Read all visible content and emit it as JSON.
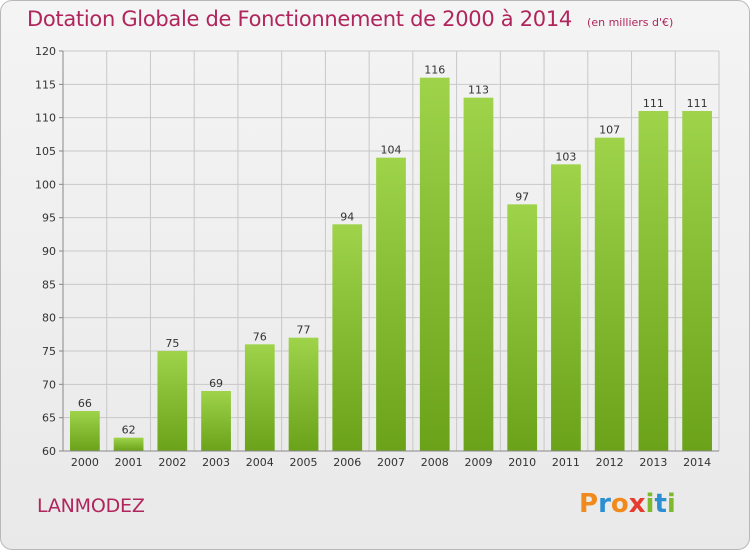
{
  "header": {
    "title": "Dotation Globale de Fonctionnement de 2000 à 2014",
    "unit": "(en milliers d'€)"
  },
  "footer": {
    "commune": "LANMODEZ",
    "logo_text": "Proxiti"
  },
  "colors": {
    "title": "#b0255b",
    "bar_light": "#9ed34a",
    "bar_dark": "#6aa21a",
    "grid": "#c8c8c8"
  },
  "chart_data": {
    "type": "bar",
    "title": "Dotation Globale de Fonctionnement de 2000 à 2014",
    "subtitle": "(en milliers d'€)",
    "xlabel": "",
    "ylabel": "",
    "categories": [
      "2000",
      "2001",
      "2002",
      "2003",
      "2004",
      "2005",
      "2006",
      "2007",
      "2008",
      "2009",
      "2010",
      "2011",
      "2012",
      "2013",
      "2014"
    ],
    "values": [
      66,
      62,
      75,
      69,
      76,
      77,
      94,
      104,
      116,
      113,
      97,
      103,
      107,
      111,
      111
    ],
    "ylim": [
      60,
      120
    ],
    "yticks": [
      60,
      65,
      70,
      75,
      80,
      85,
      90,
      95,
      100,
      105,
      110,
      115,
      120
    ],
    "grid": true,
    "legend": "none"
  }
}
